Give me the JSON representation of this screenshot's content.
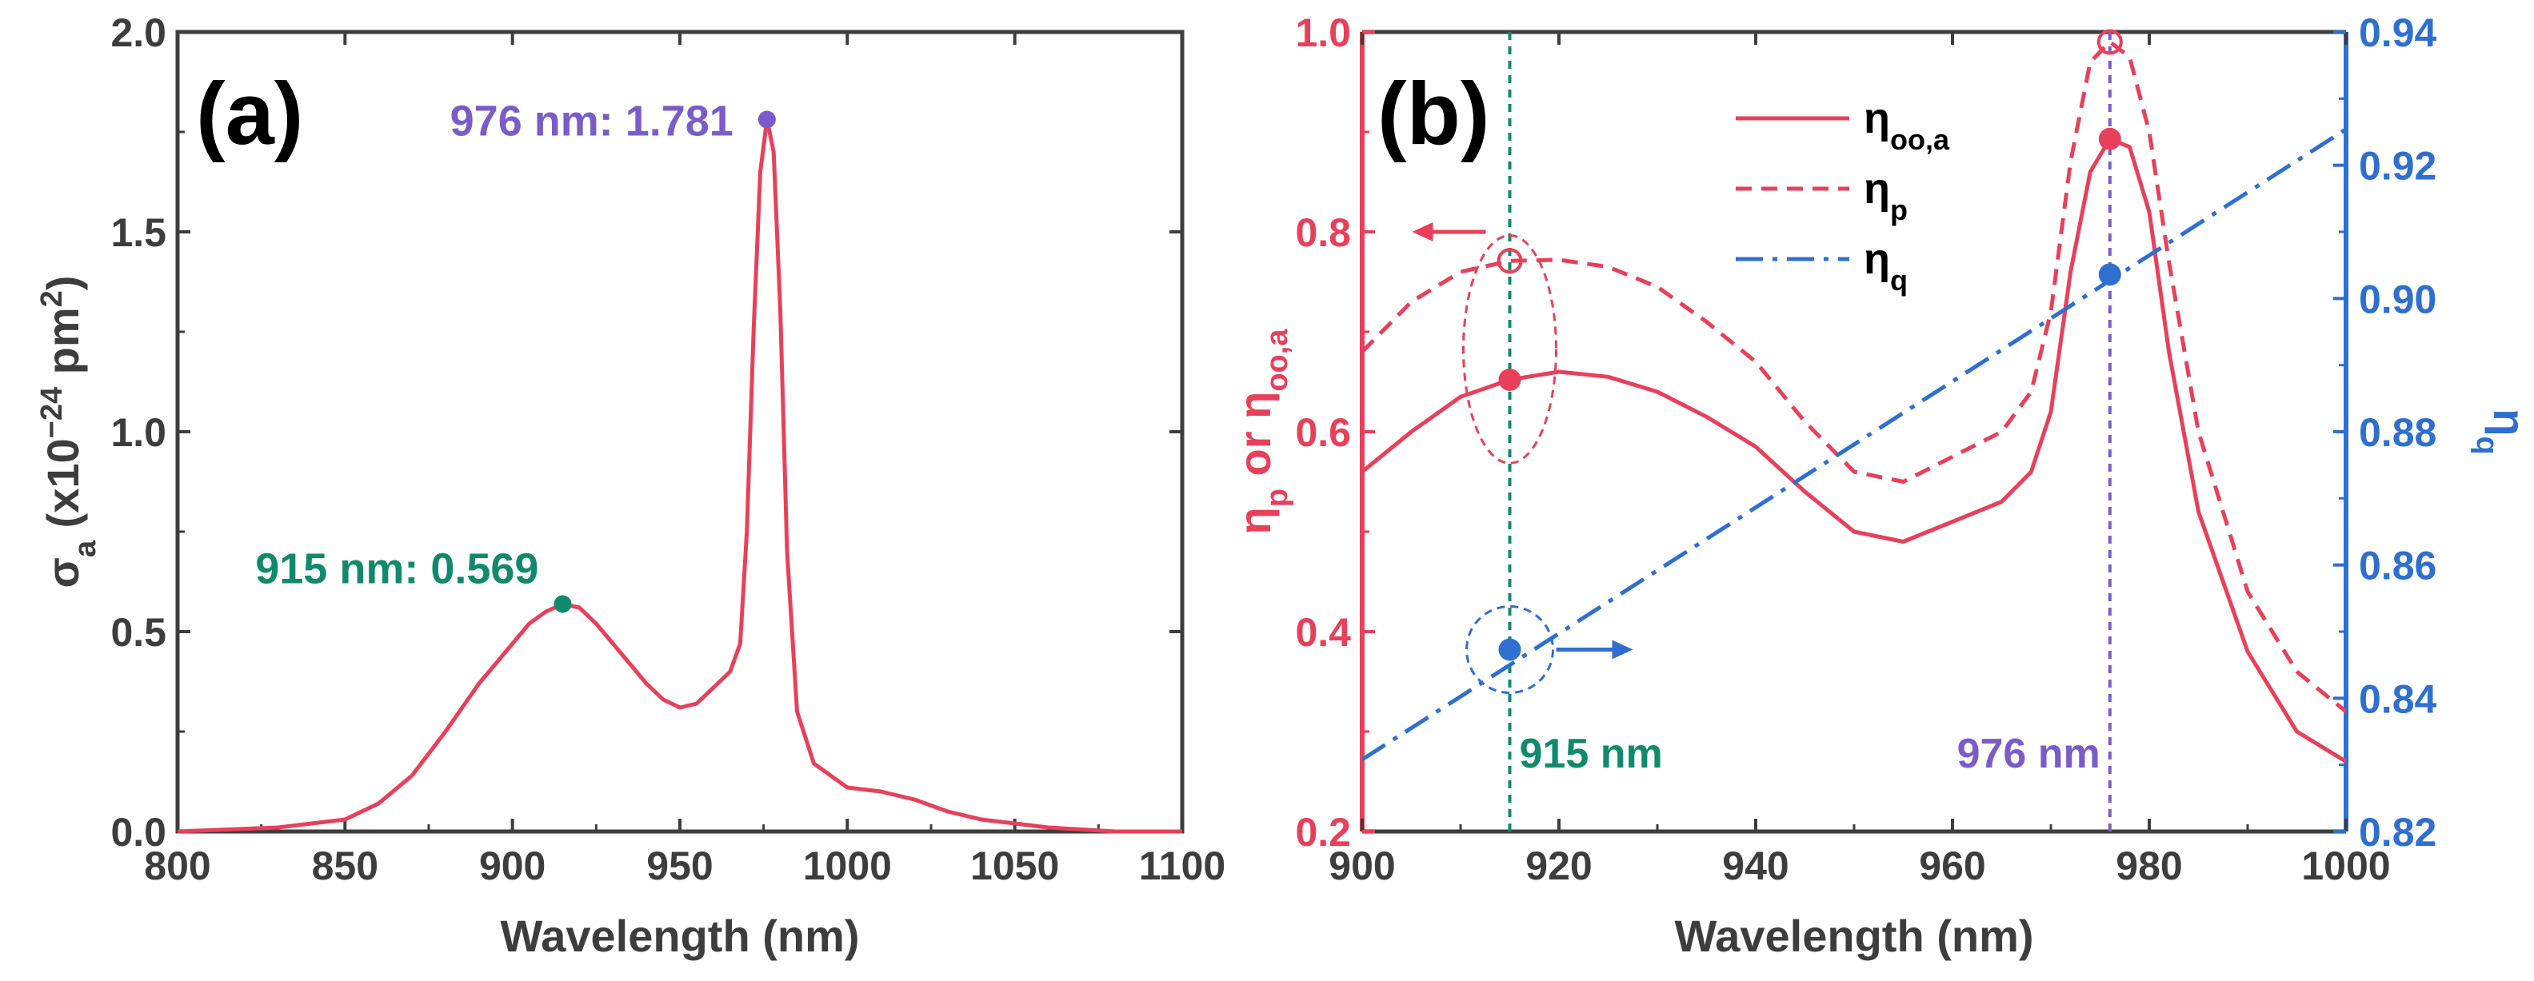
{
  "colors": {
    "axis": "#3d3d3d",
    "red": "#e8405a",
    "blue": "#2e6fd0",
    "green": "#0f8a6c",
    "purple": "#7a5cc9",
    "frame": "#3d3d3d"
  },
  "chart_data": [
    {
      "type": "line",
      "panel_label": "(a)",
      "xlabel": "Wavelength (nm)",
      "ylabel": {
        "base": "σ",
        "sub": "a",
        "mid": " (x10",
        "sup": "−24",
        "unit": " pm",
        "unit_sup": "2",
        "close": ")"
      },
      "xlim": [
        800,
        1100
      ],
      "ylim": [
        0,
        2.0
      ],
      "xticks": [
        800,
        850,
        900,
        950,
        1000,
        1050,
        1100
      ],
      "xtick_labels": [
        "800",
        "850",
        "900",
        "950",
        "1000",
        "1050",
        "1100"
      ],
      "yticks": [
        0,
        0.5,
        1.0,
        1.5,
        2.0
      ],
      "ytick_labels": [
        "0.0",
        "0.5",
        "1.0",
        "1.5",
        "2.0"
      ],
      "series": [
        {
          "name": "σa",
          "color": "#e8405a",
          "x": [
            800,
            830,
            850,
            860,
            870,
            880,
            890,
            900,
            905,
            910,
            915,
            920,
            925,
            930,
            935,
            940,
            945,
            950,
            955,
            960,
            965,
            968,
            970,
            972,
            974,
            976,
            978,
            980,
            982,
            985,
            990,
            1000,
            1010,
            1020,
            1030,
            1040,
            1050,
            1060,
            1070,
            1080,
            1100
          ],
          "y": [
            0.0,
            0.01,
            0.03,
            0.07,
            0.14,
            0.25,
            0.37,
            0.47,
            0.52,
            0.55,
            0.569,
            0.56,
            0.52,
            0.47,
            0.42,
            0.37,
            0.33,
            0.31,
            0.32,
            0.36,
            0.4,
            0.47,
            0.75,
            1.25,
            1.65,
            1.781,
            1.7,
            1.3,
            0.7,
            0.3,
            0.17,
            0.11,
            0.1,
            0.08,
            0.05,
            0.03,
            0.02,
            0.01,
            0.005,
            0.0,
            0.0
          ]
        }
      ],
      "annotations": [
        {
          "label": "976 nm: 1.781",
          "x": 976,
          "y": 1.781,
          "color": "#7a5cc9"
        },
        {
          "label": "915 nm: 0.569",
          "x": 915,
          "y": 0.569,
          "color": "#0f8a6c"
        }
      ]
    },
    {
      "type": "line",
      "panel_label": "(b)",
      "xlabel": "Wavelength (nm)",
      "ylabel_left": {
        "p1": "η",
        "p1_sub": "p",
        "mid": " or ",
        "p2": "η",
        "p2_sub": "oo,a"
      },
      "ylabel_right": {
        "base": "η",
        "sub": "q"
      },
      "xlim": [
        900,
        1000
      ],
      "ylim_left": [
        0.2,
        1.0
      ],
      "ylim_right": [
        0.82,
        0.94
      ],
      "xticks": [
        900,
        920,
        940,
        960,
        980,
        1000
      ],
      "xtick_labels": [
        "900",
        "920",
        "940",
        "960",
        "980",
        "1000"
      ],
      "yticks_left": [
        0.2,
        0.4,
        0.6,
        0.8,
        1.0
      ],
      "ytick_labels_left": [
        "0.2",
        "0.4",
        "0.6",
        "0.8",
        "1.0"
      ],
      "yticks_right": [
        0.82,
        0.84,
        0.86,
        0.88,
        0.9,
        0.92,
        0.94
      ],
      "ytick_labels_right": [
        "0.82",
        "0.84",
        "0.86",
        "0.88",
        "0.90",
        "0.92",
        "0.94"
      ],
      "series": [
        {
          "name": "η_oo,a",
          "legend_base": "η",
          "legend_sub": "oo,a",
          "axis": "left",
          "style": "solid",
          "color": "#e8405a",
          "x": [
            900,
            905,
            910,
            915,
            920,
            925,
            930,
            935,
            940,
            945,
            950,
            955,
            960,
            965,
            968,
            970,
            972,
            974,
            976,
            978,
            980,
            982,
            985,
            990,
            995,
            1000
          ],
          "y": [
            0.56,
            0.6,
            0.635,
            0.652,
            0.66,
            0.655,
            0.64,
            0.615,
            0.585,
            0.54,
            0.5,
            0.49,
            0.51,
            0.53,
            0.56,
            0.62,
            0.76,
            0.86,
            0.893,
            0.885,
            0.82,
            0.68,
            0.52,
            0.38,
            0.3,
            0.27
          ]
        },
        {
          "name": "η_p",
          "legend_base": "η",
          "legend_sub": "p",
          "axis": "left",
          "style": "dashed",
          "color": "#e8405a",
          "x": [
            900,
            905,
            910,
            915,
            920,
            925,
            930,
            935,
            940,
            945,
            950,
            955,
            960,
            965,
            968,
            970,
            972,
            974,
            976,
            978,
            980,
            982,
            985,
            990,
            995,
            1000
          ],
          "y": [
            0.68,
            0.73,
            0.76,
            0.771,
            0.772,
            0.765,
            0.745,
            0.71,
            0.67,
            0.61,
            0.56,
            0.55,
            0.575,
            0.6,
            0.64,
            0.72,
            0.87,
            0.97,
            0.99,
            0.975,
            0.9,
            0.77,
            0.6,
            0.44,
            0.36,
            0.32
          ]
        },
        {
          "name": "η_q",
          "legend_base": "η",
          "legend_sub": "q",
          "axis": "right",
          "style": "dashdot",
          "color": "#2e6fd0",
          "x": [
            900,
            1000
          ],
          "y": [
            0.8308,
            0.9254
          ]
        }
      ],
      "markers": [
        {
          "series": "η_oo,a",
          "x": 915,
          "y": 0.652,
          "axis": "left",
          "filled": true,
          "color": "#e8405a"
        },
        {
          "series": "η_p",
          "x": 915,
          "y": 0.771,
          "axis": "left",
          "filled": false,
          "color": "#e8405a"
        },
        {
          "series": "η_q",
          "x": 915,
          "y": 0.8473,
          "axis": "right",
          "filled": true,
          "color": "#2e6fd0"
        },
        {
          "series": "η_oo,a",
          "x": 976,
          "y": 0.893,
          "axis": "left",
          "filled": true,
          "color": "#e8405a"
        },
        {
          "series": "η_p",
          "x": 976,
          "y": 0.99,
          "axis": "left",
          "filled": false,
          "color": "#e8405a"
        },
        {
          "series": "η_q",
          "x": 976,
          "y": 0.9036,
          "axis": "right",
          "filled": true,
          "color": "#2e6fd0"
        }
      ],
      "vlines": [
        {
          "x": 915,
          "label": "915 nm",
          "color": "#0f8a6c"
        },
        {
          "x": 976,
          "label": "976 nm",
          "color": "#7a5cc9"
        }
      ],
      "legend": {
        "placement": "top-center"
      }
    }
  ]
}
